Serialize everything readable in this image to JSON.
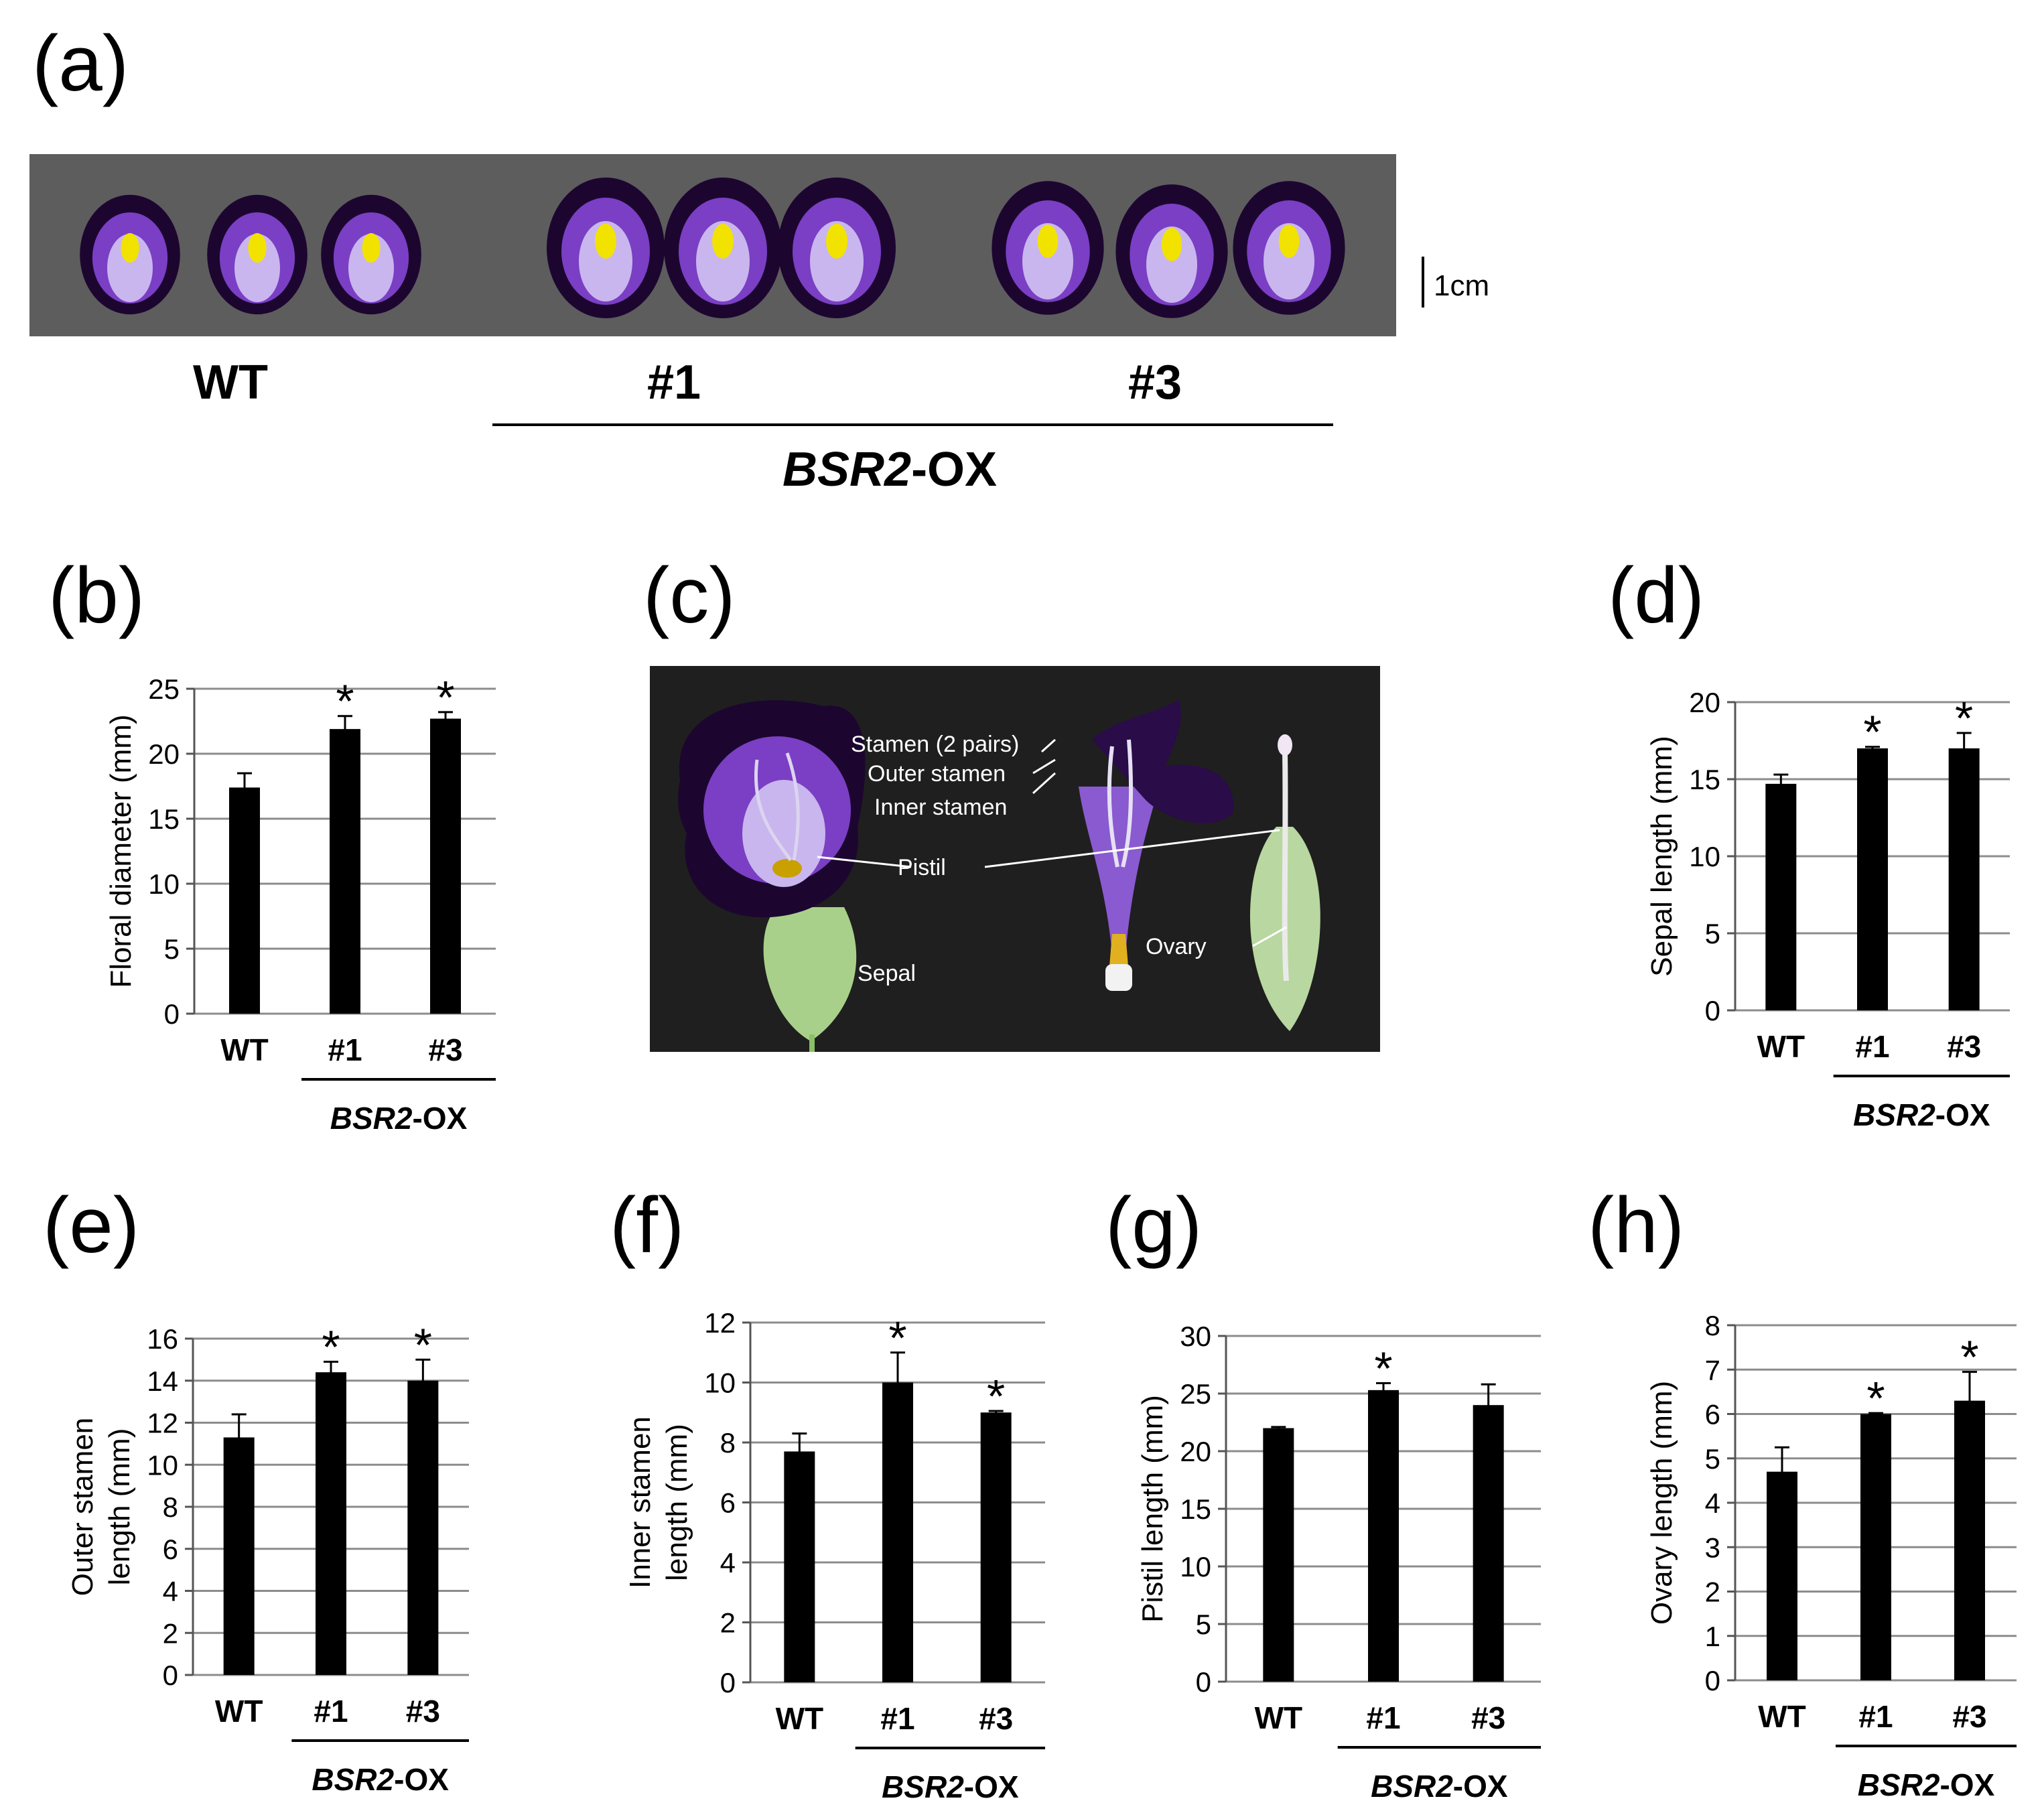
{
  "panel_labels": {
    "a": "(a)",
    "b": "(b)",
    "c": "(c)",
    "d": "(d)",
    "e": "(e)",
    "f": "(f)",
    "g": "(g)",
    "h": "(h)"
  },
  "panel_a": {
    "scale_label": "1cm",
    "labels": {
      "wt": "WT",
      "line1": "#1",
      "line3": "#3"
    },
    "group_italic": "BSR2",
    "group_suffix": "-OX"
  },
  "panel_c": {
    "labels": {
      "stamen": "Stamen   (2 pairs)",
      "outer": "Outer  stamen",
      "inner": "Inner stamen",
      "pistil": "Pistil",
      "sepal": "Sepal",
      "ovary": "Ovary"
    }
  },
  "colors": {
    "photo_bg_a": "#5d5d5d",
    "photo_bg_c": "#1f1f1f",
    "petal": "#7a3fc4",
    "petal_dark": "#1c0630",
    "center": "#c9b6ee",
    "yellow": "#f2e200",
    "sepal": "#a9d08a",
    "bar": "#000000",
    "grid": "#8c8c8c"
  },
  "chart_data": [
    {
      "panel": "b",
      "type": "bar",
      "categories": [
        "WT",
        "#1",
        "#3"
      ],
      "values": [
        17.4,
        21.9,
        22.7
      ],
      "errors": [
        1.1,
        1.0,
        0.5
      ],
      "significant": [
        false,
        true,
        true
      ],
      "ylabel": "Floral diameter (mm)",
      "ylim": [
        0,
        25
      ],
      "yticks": [
        0,
        5,
        10,
        15,
        20,
        25
      ],
      "group_italic": "BSR2",
      "group_suffix": "-OX",
      "grid": true
    },
    {
      "panel": "d",
      "type": "bar",
      "categories": [
        "WT",
        "#1",
        "#3"
      ],
      "values": [
        14.7,
        17.0,
        17.0
      ],
      "errors": [
        0.6,
        0.1,
        1.0
      ],
      "significant": [
        false,
        true,
        true
      ],
      "ylabel": "Sepal length (mm)",
      "ylim": [
        0,
        20
      ],
      "yticks": [
        0,
        5,
        10,
        15,
        20
      ],
      "group_italic": "BSR2",
      "group_suffix": "-OX",
      "grid": true
    },
    {
      "panel": "e",
      "type": "bar",
      "categories": [
        "WT",
        "#1",
        "#3"
      ],
      "values": [
        11.3,
        14.4,
        14.0
      ],
      "errors": [
        1.1,
        0.5,
        1.0
      ],
      "significant": [
        false,
        true,
        true
      ],
      "ylabel_lines": [
        "Outer stamen",
        "length (mm)"
      ],
      "ylim": [
        0,
        16
      ],
      "yticks": [
        0,
        2,
        4,
        6,
        8,
        10,
        12,
        14,
        16
      ],
      "group_italic": "BSR2",
      "group_suffix": "-OX",
      "grid": true
    },
    {
      "panel": "f",
      "type": "bar",
      "categories": [
        "WT",
        "#1",
        "#3"
      ],
      "values": [
        7.7,
        10.0,
        9.0
      ],
      "errors": [
        0.6,
        1.0,
        0.05
      ],
      "significant": [
        false,
        true,
        true
      ],
      "ylabel_lines": [
        "Inner stamen",
        "length (mm)"
      ],
      "ylim": [
        0,
        12
      ],
      "yticks": [
        0,
        2,
        4,
        6,
        8,
        10,
        12
      ],
      "group_italic": "BSR2",
      "group_suffix": "-OX",
      "grid": true
    },
    {
      "panel": "g",
      "type": "bar",
      "categories": [
        "WT",
        "#1",
        "#3"
      ],
      "values": [
        22.0,
        25.3,
        24.0
      ],
      "errors": [
        0.1,
        0.6,
        1.8
      ],
      "significant": [
        false,
        true,
        false
      ],
      "ylabel": "Pistil length (mm)",
      "ylim": [
        0,
        30
      ],
      "yticks": [
        0,
        5,
        10,
        15,
        20,
        25,
        30
      ],
      "group_italic": "BSR2",
      "group_suffix": "-OX",
      "grid": true
    },
    {
      "panel": "h",
      "type": "bar",
      "categories": [
        "WT",
        "#1",
        "#3"
      ],
      "values": [
        4.7,
        6.0,
        6.3
      ],
      "errors": [
        0.55,
        0.02,
        0.65
      ],
      "significant": [
        false,
        true,
        true
      ],
      "ylabel": "Ovary length (mm)",
      "ylim": [
        0,
        8
      ],
      "yticks": [
        0,
        1,
        2,
        3,
        4,
        5,
        6,
        7,
        8
      ],
      "group_italic": "BSR2",
      "group_suffix": "-OX",
      "grid": true
    }
  ]
}
